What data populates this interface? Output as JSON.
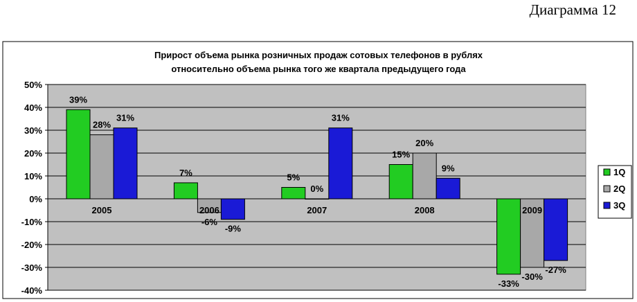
{
  "caption": "Диаграмма 12",
  "chart_data": {
    "type": "bar",
    "title_lines": [
      "Прирост объема рынка розничных продаж сотовых телефонов в рублях",
      "относительно объема рынка того же квартала предыдущего года"
    ],
    "categories": [
      "2005",
      "2006",
      "2007",
      "2008",
      "2009"
    ],
    "series": [
      {
        "name": "1Q",
        "values": [
          39,
          7,
          5,
          15,
          -33
        ],
        "labels": [
          "39%",
          "7%",
          "5%",
          "15%",
          "-33%"
        ],
        "color": "#22cc22"
      },
      {
        "name": "2Q",
        "values": [
          28,
          -6,
          0,
          20,
          -30
        ],
        "labels": [
          "28%",
          "-6%",
          "0%",
          "20%",
          "-30%"
        ],
        "color": "#a8a8a8"
      },
      {
        "name": "3Q",
        "values": [
          31,
          -9,
          31,
          9,
          -27
        ],
        "labels": [
          "31%",
          "-9%",
          "31%",
          "9%",
          "-27%"
        ],
        "color": "#1a1ad6"
      }
    ],
    "yticks": [
      50,
      40,
      30,
      20,
      10,
      0,
      -10,
      -20,
      -30,
      -40
    ],
    "ytick_labels": [
      "50%",
      "40%",
      "30%",
      "20%",
      "10%",
      "0%",
      "-10%",
      "-20%",
      "-30%",
      "-40%"
    ],
    "ylim": [
      -40,
      50
    ],
    "grid": true,
    "plot_background": "#c0c0c0",
    "legend_position": "right"
  }
}
